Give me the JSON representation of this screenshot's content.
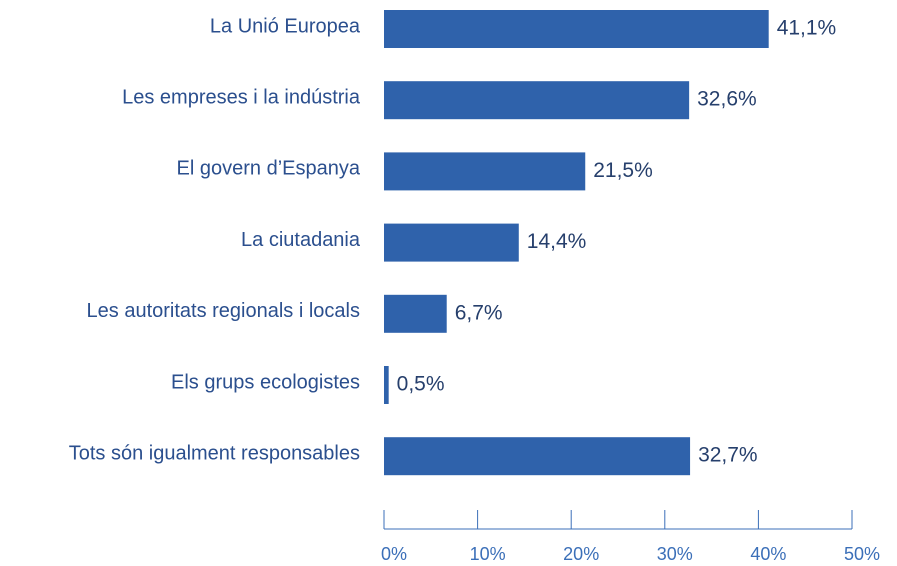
{
  "chart_data": {
    "type": "bar",
    "orientation": "horizontal",
    "categories": [
      "La Unió Europea",
      "Les empreses i la indústria",
      "El govern d’Espanya",
      "La ciutadania",
      "Les autoritats regionals i locals",
      "Els grups ecologistes",
      "Tots són igualment responsables"
    ],
    "values": [
      41.1,
      32.6,
      21.5,
      14.4,
      6.7,
      0.5,
      32.7
    ],
    "value_labels": [
      "41,1%",
      "32,6%",
      "21,5%",
      "14,4%",
      "6,7%",
      "0,5%",
      "32,7%"
    ],
    "color": "#2f62ab",
    "xlim": [
      0,
      50
    ],
    "xticks": [
      {
        "value": 0,
        "label": "0%"
      },
      {
        "value": 10,
        "label": "10%"
      },
      {
        "value": 20,
        "label": "20%"
      },
      {
        "value": 30,
        "label": "30%"
      },
      {
        "value": 40,
        "label": "40%"
      },
      {
        "value": 50,
        "label": "50%"
      }
    ],
    "grid": false
  }
}
